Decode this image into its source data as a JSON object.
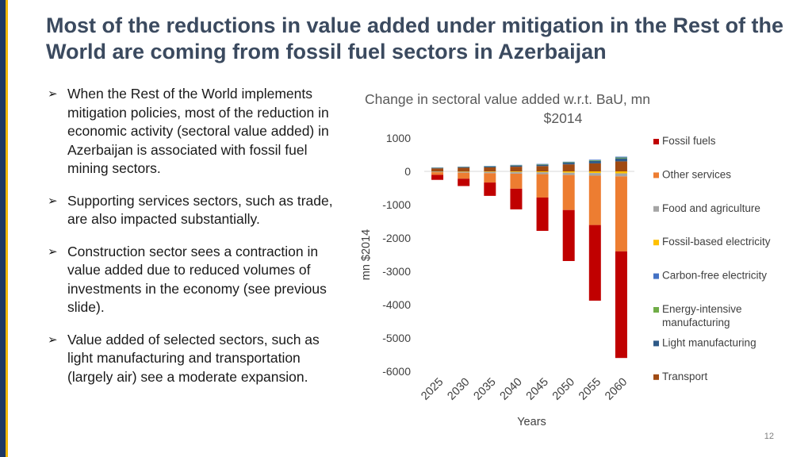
{
  "slide": {
    "title": "Most of the reductions in value added under mitigation in the Rest of the World are coming from fossil fuel sectors in Azerbaijan",
    "bullets": [
      "When the Rest of the World implements mitigation policies, most of the reduction in economic activity (sectoral value added) in Azerbaijan is associated with fossil fuel mining sectors.",
      "Supporting services sectors, such as trade, are also impacted substantially.",
      "Construction sector sees a contraction in value added due to reduced volumes of investments in the economy (see previous slide).",
      "Value added of selected sectors, such as light manufacturing and transportation (largely air) see a moderate expansion."
    ],
    "page_number": "12"
  },
  "chart_data": {
    "type": "bar",
    "stacked": true,
    "title": "Change in sectoral value added w.r.t. BaU, mn $2014",
    "xlabel": "Years",
    "ylabel": "mn $2014",
    "ylim": [
      -6000,
      1000
    ],
    "yticks": [
      1000,
      0,
      -1000,
      -2000,
      -3000,
      -4000,
      -5000,
      -6000
    ],
    "categories": [
      "2025",
      "2030",
      "2035",
      "2040",
      "2045",
      "2050",
      "2055",
      "2060"
    ],
    "series": [
      {
        "name": "Transport",
        "color": "#a04a12",
        "values": [
          90,
          110,
          120,
          140,
          160,
          210,
          240,
          300
        ]
      },
      {
        "name": "Light manufacturing",
        "color": "#2e5a88",
        "values": [
          15,
          20,
          25,
          35,
          40,
          50,
          70,
          90
        ]
      },
      {
        "name": "Energy-intensive manufacturing",
        "color": "#70ad47",
        "values": [
          5,
          5,
          8,
          10,
          12,
          15,
          20,
          25
        ]
      },
      {
        "name": "Carbon-free electricity",
        "color": "#4472c4",
        "values": [
          5,
          5,
          8,
          10,
          12,
          15,
          20,
          25
        ]
      },
      {
        "name": "Fossil-based electricity",
        "color": "#ffc000",
        "values": [
          -5,
          -10,
          -15,
          -20,
          -25,
          -40,
          -50,
          -60
        ]
      },
      {
        "name": "Food and agriculture",
        "color": "#a5a5a5",
        "values": [
          -20,
          -30,
          -40,
          -50,
          -60,
          -70,
          -80,
          -90
        ]
      },
      {
        "name": "Other services",
        "color": "#ed7d31",
        "values": [
          -80,
          -180,
          -280,
          -450,
          -700,
          -1050,
          -1480,
          -2250
        ]
      },
      {
        "name": "Fossil fuels",
        "color": "#c00000",
        "values": [
          -150,
          -220,
          -400,
          -620,
          -1000,
          -1530,
          -2270,
          -3200
        ]
      }
    ],
    "legend_position": "right"
  }
}
